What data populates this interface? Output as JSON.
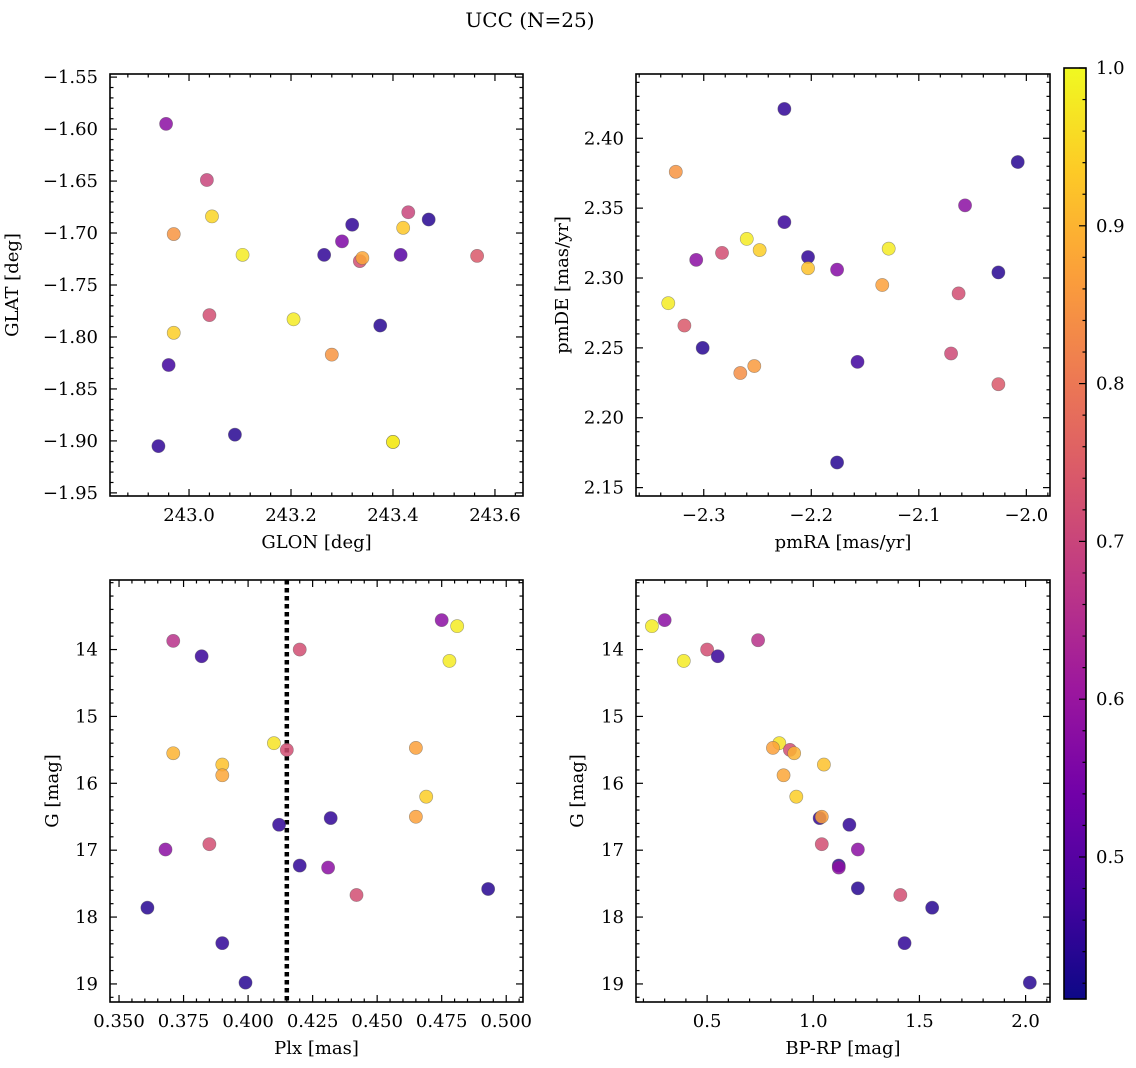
{
  "figure_title": "UCC (N=25)",
  "colorbar": {
    "min": 0.41,
    "max": 1.0,
    "ticks": [
      0.5,
      0.6,
      0.7,
      0.8,
      0.9,
      1.0
    ],
    "tick_labels": [
      "0.5",
      "0.6",
      "0.7",
      "0.8",
      "0.9",
      "1.0"
    ],
    "colormap": "plasma",
    "colors": [
      "#0d0887",
      "#46039f",
      "#7201a8",
      "#9c179e",
      "#bd3786",
      "#d8576b",
      "#ed7953",
      "#fb9f3a",
      "#fdca26",
      "#f0f921"
    ]
  },
  "chart_data": [
    {
      "type": "scatter",
      "name": "glon-glat",
      "xlabel": "GLON [deg]",
      "ylabel": "GLAT [deg]",
      "xlim": [
        242.845,
        243.655
      ],
      "ylim": [
        -1.953,
        -1.547
      ],
      "x_ticks": [
        243.0,
        243.2,
        243.4,
        243.6
      ],
      "x_tick_labels": [
        "243.0",
        "243.2",
        "243.4",
        "243.6"
      ],
      "y_ticks": [
        -1.95,
        -1.9,
        -1.85,
        -1.8,
        -1.75,
        -1.7,
        -1.65,
        -1.6,
        -1.55
      ],
      "y_tick_labels": [
        "−1.95",
        "−1.90",
        "−1.85",
        "−1.80",
        "−1.75",
        "−1.70",
        "−1.65",
        "−1.60",
        "−1.55"
      ],
      "y_inverted": false,
      "points": [
        {
          "x": 242.955,
          "y": -1.595,
          "c": 0.58
        },
        {
          "x": 243.035,
          "y": -1.649,
          "c": 0.7
        },
        {
          "x": 243.045,
          "y": -1.684,
          "c": 0.95
        },
        {
          "x": 242.97,
          "y": -1.701,
          "c": 0.85
        },
        {
          "x": 243.105,
          "y": -1.721,
          "c": 0.98
        },
        {
          "x": 243.265,
          "y": -1.721,
          "c": 0.45
        },
        {
          "x": 243.3,
          "y": -1.708,
          "c": 0.56
        },
        {
          "x": 243.32,
          "y": -1.692,
          "c": 0.45
        },
        {
          "x": 243.335,
          "y": -1.727,
          "c": 0.72
        },
        {
          "x": 243.34,
          "y": -1.724,
          "c": 0.88
        },
        {
          "x": 243.415,
          "y": -1.721,
          "c": 0.5
        },
        {
          "x": 243.42,
          "y": -1.695,
          "c": 0.93
        },
        {
          "x": 243.43,
          "y": -1.68,
          "c": 0.7
        },
        {
          "x": 243.47,
          "y": -1.687,
          "c": 0.44
        },
        {
          "x": 243.565,
          "y": -1.722,
          "c": 0.74
        },
        {
          "x": 243.04,
          "y": -1.779,
          "c": 0.72
        },
        {
          "x": 243.205,
          "y": -1.783,
          "c": 0.98
        },
        {
          "x": 243.375,
          "y": -1.789,
          "c": 0.44
        },
        {
          "x": 242.97,
          "y": -1.796,
          "c": 0.94
        },
        {
          "x": 242.96,
          "y": -1.827,
          "c": 0.47
        },
        {
          "x": 243.28,
          "y": -1.817,
          "c": 0.85
        },
        {
          "x": 242.94,
          "y": -1.905,
          "c": 0.45
        },
        {
          "x": 243.09,
          "y": -1.894,
          "c": 0.44
        },
        {
          "x": 243.4,
          "y": -1.901,
          "c": 0.9
        },
        {
          "x": 243.4,
          "y": -1.901,
          "c": 0.99
        }
      ]
    },
    {
      "type": "scatter",
      "name": "pmra-pmde",
      "xlabel": "pmRA [mas/yr]",
      "ylabel": "pmDE [mas/yr]",
      "xlim": [
        -2.363,
        -1.978
      ],
      "ylim": [
        2.144,
        2.446
      ],
      "x_ticks": [
        -2.3,
        -2.2,
        -2.1,
        -2.0
      ],
      "x_tick_labels": [
        "−2.3",
        "−2.2",
        "−2.1",
        "−2.0"
      ],
      "y_ticks": [
        2.15,
        2.2,
        2.25,
        2.3,
        2.35,
        2.4
      ],
      "y_tick_labels": [
        "2.15",
        "2.20",
        "2.25",
        "2.30",
        "2.35",
        "2.40"
      ],
      "y_inverted": false,
      "points": [
        {
          "x": -2.225,
          "y": 2.421,
          "c": 0.45
        },
        {
          "x": -2.326,
          "y": 2.376,
          "c": 0.85
        },
        {
          "x": -2.008,
          "y": 2.383,
          "c": 0.44
        },
        {
          "x": -2.057,
          "y": 2.352,
          "c": 0.58
        },
        {
          "x": -2.225,
          "y": 2.34,
          "c": 0.46
        },
        {
          "x": -2.26,
          "y": 2.328,
          "c": 0.98
        },
        {
          "x": -2.248,
          "y": 2.32,
          "c": 0.94
        },
        {
          "x": -2.128,
          "y": 2.321,
          "c": 0.98
        },
        {
          "x": -2.283,
          "y": 2.318,
          "c": 0.72
        },
        {
          "x": -2.307,
          "y": 2.313,
          "c": 0.58
        },
        {
          "x": -2.203,
          "y": 2.315,
          "c": 0.45
        },
        {
          "x": -2.203,
          "y": 2.307,
          "c": 0.92
        },
        {
          "x": -2.176,
          "y": 2.306,
          "c": 0.57
        },
        {
          "x": -2.026,
          "y": 2.304,
          "c": 0.44
        },
        {
          "x": -2.134,
          "y": 2.295,
          "c": 0.87
        },
        {
          "x": -2.063,
          "y": 2.289,
          "c": 0.72
        },
        {
          "x": -2.333,
          "y": 2.282,
          "c": 0.98
        },
        {
          "x": -2.318,
          "y": 2.266,
          "c": 0.74
        },
        {
          "x": -2.301,
          "y": 2.25,
          "c": 0.44
        },
        {
          "x": -2.07,
          "y": 2.246,
          "c": 0.71
        },
        {
          "x": -2.157,
          "y": 2.24,
          "c": 0.47
        },
        {
          "x": -2.253,
          "y": 2.237,
          "c": 0.86
        },
        {
          "x": -2.266,
          "y": 2.232,
          "c": 0.84
        },
        {
          "x": -2.026,
          "y": 2.224,
          "c": 0.74
        },
        {
          "x": -2.176,
          "y": 2.168,
          "c": 0.44
        }
      ]
    },
    {
      "type": "scatter",
      "name": "plx-g",
      "xlabel": "Plx [mas]",
      "ylabel": "G [mag]",
      "xlim": [
        0.3465,
        0.5065
      ],
      "ylim": [
        19.27,
        12.96
      ],
      "x_ticks": [
        0.35,
        0.375,
        0.4,
        0.425,
        0.45,
        0.475,
        0.5
      ],
      "x_tick_labels": [
        "0.350",
        "0.375",
        "0.400",
        "0.425",
        "0.450",
        "0.475",
        "0.500"
      ],
      "y_ticks": [
        14,
        15,
        16,
        17,
        18,
        19
      ],
      "y_tick_labels": [
        "14",
        "15",
        "16",
        "17",
        "18",
        "19"
      ],
      "y_inverted": true,
      "vline": 0.415,
      "points": [
        {
          "x": 0.475,
          "y": 13.56,
          "c": 0.58
        },
        {
          "x": 0.481,
          "y": 13.65,
          "c": 0.98
        },
        {
          "x": 0.371,
          "y": 13.87,
          "c": 0.66
        },
        {
          "x": 0.42,
          "y": 14.0,
          "c": 0.72
        },
        {
          "x": 0.382,
          "y": 14.1,
          "c": 0.46
        },
        {
          "x": 0.478,
          "y": 14.17,
          "c": 0.98
        },
        {
          "x": 0.41,
          "y": 15.4,
          "c": 0.97
        },
        {
          "x": 0.465,
          "y": 15.47,
          "c": 0.87
        },
        {
          "x": 0.415,
          "y": 15.5,
          "c": 0.72
        },
        {
          "x": 0.371,
          "y": 15.55,
          "c": 0.9
        },
        {
          "x": 0.39,
          "y": 15.72,
          "c": 0.92
        },
        {
          "x": 0.39,
          "y": 15.88,
          "c": 0.88
        },
        {
          "x": 0.469,
          "y": 16.2,
          "c": 0.94
        },
        {
          "x": 0.432,
          "y": 16.52,
          "c": 0.45
        },
        {
          "x": 0.465,
          "y": 16.5,
          "c": 0.87
        },
        {
          "x": 0.412,
          "y": 16.62,
          "c": 0.45
        },
        {
          "x": 0.385,
          "y": 16.91,
          "c": 0.72
        },
        {
          "x": 0.368,
          "y": 16.99,
          "c": 0.58
        },
        {
          "x": 0.42,
          "y": 17.23,
          "c": 0.45
        },
        {
          "x": 0.431,
          "y": 17.26,
          "c": 0.58
        },
        {
          "x": 0.493,
          "y": 17.58,
          "c": 0.44
        },
        {
          "x": 0.442,
          "y": 17.67,
          "c": 0.72
        },
        {
          "x": 0.361,
          "y": 17.86,
          "c": 0.44
        },
        {
          "x": 0.39,
          "y": 18.39,
          "c": 0.45
        },
        {
          "x": 0.399,
          "y": 18.98,
          "c": 0.44
        }
      ]
    },
    {
      "type": "scatter",
      "name": "bprp-g",
      "xlabel": "BP-RP [mag]",
      "ylabel": "G [mag]",
      "xlim": [
        0.165,
        2.115
      ],
      "ylim": [
        19.27,
        12.96
      ],
      "x_ticks": [
        0.5,
        1.0,
        1.5,
        2.0
      ],
      "x_tick_labels": [
        "0.5",
        "1.0",
        "1.5",
        "2.0"
      ],
      "y_ticks": [
        14,
        15,
        16,
        17,
        18,
        19
      ],
      "y_tick_labels": [
        "14",
        "15",
        "16",
        "17",
        "18",
        "19"
      ],
      "y_inverted": true,
      "points": [
        {
          "x": 0.3,
          "y": 13.56,
          "c": 0.58
        },
        {
          "x": 0.24,
          "y": 13.65,
          "c": 0.98
        },
        {
          "x": 0.74,
          "y": 13.86,
          "c": 0.66
        },
        {
          "x": 0.5,
          "y": 14.0,
          "c": 0.72
        },
        {
          "x": 0.55,
          "y": 14.1,
          "c": 0.46
        },
        {
          "x": 0.39,
          "y": 14.17,
          "c": 0.98
        },
        {
          "x": 0.84,
          "y": 15.4,
          "c": 0.97
        },
        {
          "x": 0.81,
          "y": 15.47,
          "c": 0.87
        },
        {
          "x": 0.89,
          "y": 15.5,
          "c": 0.72
        },
        {
          "x": 0.91,
          "y": 15.55,
          "c": 0.9
        },
        {
          "x": 1.05,
          "y": 15.72,
          "c": 0.92
        },
        {
          "x": 0.86,
          "y": 15.88,
          "c": 0.88
        },
        {
          "x": 0.92,
          "y": 16.2,
          "c": 0.94
        },
        {
          "x": 1.03,
          "y": 16.52,
          "c": 0.45
        },
        {
          "x": 1.04,
          "y": 16.5,
          "c": 0.87
        },
        {
          "x": 1.17,
          "y": 16.62,
          "c": 0.45
        },
        {
          "x": 1.04,
          "y": 16.91,
          "c": 0.72
        },
        {
          "x": 1.21,
          "y": 16.99,
          "c": 0.58
        },
        {
          "x": 1.12,
          "y": 17.23,
          "c": 0.45
        },
        {
          "x": 1.12,
          "y": 17.26,
          "c": 0.58
        },
        {
          "x": 1.21,
          "y": 17.57,
          "c": 0.44
        },
        {
          "x": 1.41,
          "y": 17.67,
          "c": 0.72
        },
        {
          "x": 1.56,
          "y": 17.86,
          "c": 0.44
        },
        {
          "x": 1.43,
          "y": 18.39,
          "c": 0.45
        },
        {
          "x": 2.02,
          "y": 18.98,
          "c": 0.44
        }
      ]
    }
  ]
}
